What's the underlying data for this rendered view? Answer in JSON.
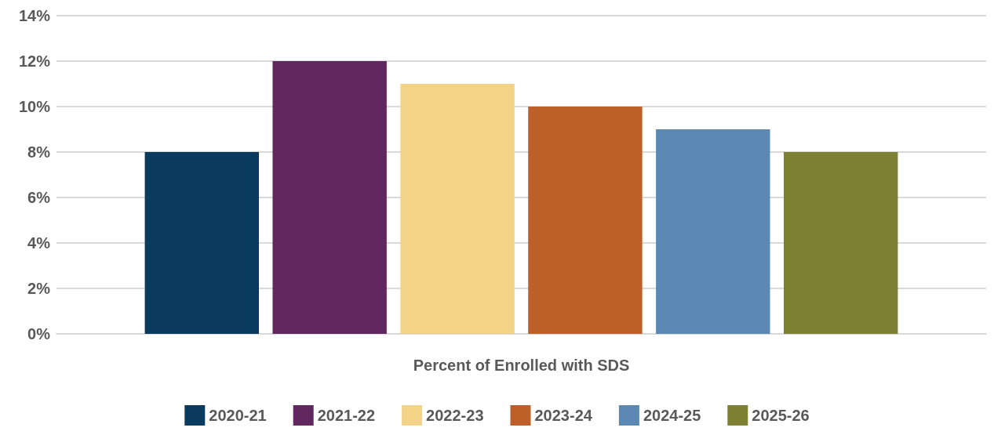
{
  "chart_data": {
    "type": "bar",
    "categories": [
      "Percent of Enrolled with SDS"
    ],
    "series": [
      {
        "name": "2020-21",
        "color": "#0a3a5e",
        "values": [
          8
        ]
      },
      {
        "name": "2021-22",
        "color": "#60285e",
        "values": [
          12
        ]
      },
      {
        "name": "2022-23",
        "color": "#f2d388",
        "values": [
          11
        ]
      },
      {
        "name": "2023-24",
        "color": "#bc5f28",
        "values": [
          10
        ]
      },
      {
        "name": "2024-25",
        "color": "#5b89b4",
        "values": [
          9
        ]
      },
      {
        "name": "2025-26",
        "color": "#7e8034",
        "values": [
          8
        ]
      }
    ],
    "ylim": [
      0,
      14
    ],
    "yticks": [
      {
        "value": 0,
        "label": "0%"
      },
      {
        "value": 2,
        "label": "2%"
      },
      {
        "value": 4,
        "label": "4%"
      },
      {
        "value": 6,
        "label": "6%"
      },
      {
        "value": 8,
        "label": "8%"
      },
      {
        "value": 10,
        "label": "10%"
      },
      {
        "value": 12,
        "label": "12%"
      },
      {
        "value": 14,
        "label": "14%"
      }
    ],
    "grid": "y",
    "legend": "bottom"
  }
}
